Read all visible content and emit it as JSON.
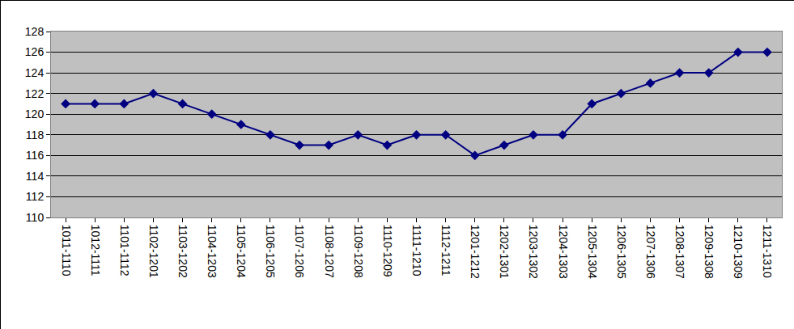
{
  "chart_data": {
    "type": "line",
    "categories": [
      "1011-1110",
      "1012-1111",
      "1101-1112",
      "1102-1201",
      "1103-1202",
      "1104-1203",
      "1105-1204",
      "1106-1205",
      "1107-1206",
      "1108-1207",
      "1109-1208",
      "1110-1209",
      "1111-1210",
      "1112-1211",
      "1201-1212",
      "1202-1301",
      "1203-1302",
      "1204-1303",
      "1205-1304",
      "1206-1305",
      "1207-1306",
      "1208-1307",
      "1209-1308",
      "1210-1309",
      "1211-1310"
    ],
    "values": [
      121,
      121,
      121,
      122,
      121,
      120,
      119,
      118,
      117,
      117,
      118,
      117,
      118,
      118,
      116,
      117,
      118,
      118,
      121,
      122,
      123,
      124,
      124,
      126,
      126
    ],
    "color": "#000080",
    "marker": "diamond",
    "ylim": [
      110,
      128
    ],
    "yticks": [
      110,
      112,
      114,
      116,
      118,
      120,
      122,
      124,
      126,
      128
    ],
    "grid": true
  }
}
